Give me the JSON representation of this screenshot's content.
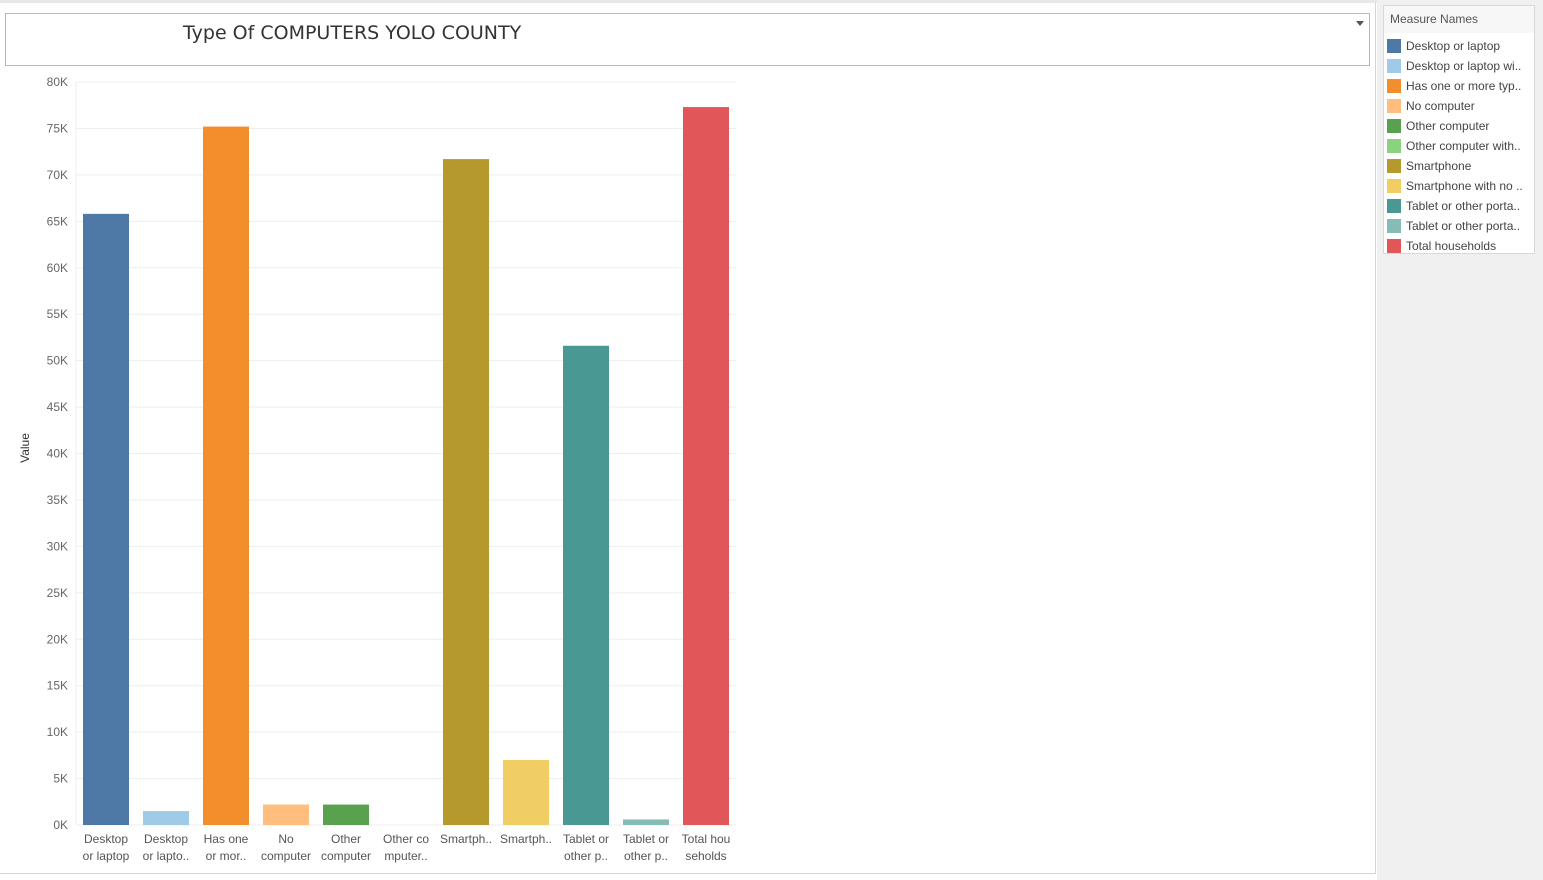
{
  "dashboard": {
    "title": "Type Of COMPUTERS YOLO COUNTY"
  },
  "legend": {
    "title": "Measure Names",
    "items": [
      {
        "label": "Desktop or laptop",
        "color": "#4e79a7"
      },
      {
        "label": "Desktop or laptop wi..",
        "color": "#a0cbe8"
      },
      {
        "label": "Has one or more typ..",
        "color": "#f28e2b"
      },
      {
        "label": "No computer",
        "color": "#ffbe7d"
      },
      {
        "label": "Other computer",
        "color": "#59a14f"
      },
      {
        "label": "Other computer with..",
        "color": "#8cd17d"
      },
      {
        "label": "Smartphone",
        "color": "#b6992d"
      },
      {
        "label": "Smartphone with no ..",
        "color": "#f1ce63"
      },
      {
        "label": "Tablet or other porta..",
        "color": "#499894"
      },
      {
        "label": "Tablet or other porta..",
        "color": "#86bcb6"
      },
      {
        "label": "Total households",
        "color": "#e15759"
      }
    ]
  },
  "chart_data": {
    "type": "bar",
    "ylabel": "Value",
    "ylim": [
      0,
      80000
    ],
    "yticks": [
      "0K",
      "5K",
      "10K",
      "15K",
      "20K",
      "25K",
      "30K",
      "35K",
      "40K",
      "45K",
      "50K",
      "55K",
      "60K",
      "65K",
      "70K",
      "75K",
      "80K"
    ],
    "grid": true,
    "legend": "right",
    "categories": [
      [
        "Desktop",
        "or laptop"
      ],
      [
        "Desktop",
        "or lapto.."
      ],
      [
        "Has one",
        "or mor.."
      ],
      [
        "No",
        "computer"
      ],
      [
        "Other",
        "computer"
      ],
      [
        "Other co",
        "mputer.."
      ],
      [
        "Smartph..",
        ""
      ],
      [
        "Smartph..",
        ""
      ],
      [
        "Tablet or",
        "other p.."
      ],
      [
        "Tablet or",
        "other p.."
      ],
      [
        "Total hou",
        "seholds"
      ]
    ],
    "values": [
      65800,
      1500,
      75200,
      2200,
      2200,
      0,
      71700,
      7000,
      51600,
      600,
      77300
    ],
    "colors": [
      "#4e79a7",
      "#a0cbe8",
      "#f28e2b",
      "#ffbe7d",
      "#59a14f",
      "#8cd17d",
      "#b6992d",
      "#f1ce63",
      "#499894",
      "#86bcb6",
      "#e15759"
    ]
  }
}
